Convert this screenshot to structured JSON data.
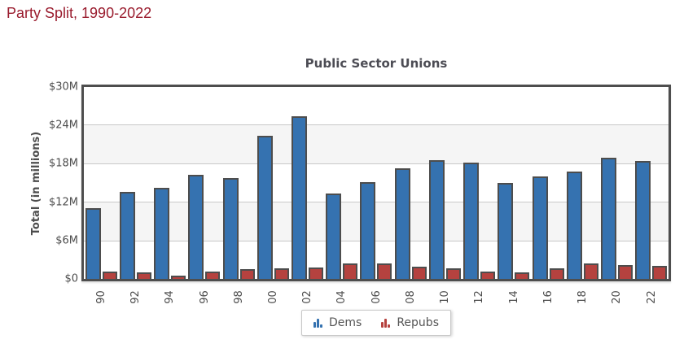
{
  "page_title": "Party Split, 1990-2022",
  "colors": {
    "page_title": "#9a1c2e",
    "chart_title": "#4c4c54",
    "axis_text": "#4d4d4d",
    "dems": "#3572b0",
    "repubs": "#b5423f",
    "bar_outline": "#4d4d4d",
    "frame": "#4e4e4e",
    "gridline": "#c9c9c9",
    "band": "#f5f5f5",
    "legend_text": "#555555"
  },
  "chart_data": {
    "type": "bar",
    "title": "Public Sector Unions",
    "xlabel": "",
    "ylabel": "Total (in millions)",
    "ylim": [
      0,
      30
    ],
    "yticks": [
      "$30M",
      "$24M",
      "$18M",
      "$12M",
      "$6M",
      "$0"
    ],
    "grid": true,
    "legend_position": "bottom-center",
    "categories": [
      "90",
      "92",
      "94",
      "96",
      "98",
      "00",
      "02",
      "04",
      "06",
      "08",
      "10",
      "12",
      "14",
      "16",
      "18",
      "20",
      "22"
    ],
    "series": [
      {
        "name": "Dems",
        "color": "#3572b0",
        "values": [
          11.0,
          13.6,
          14.3,
          16.3,
          15.8,
          22.4,
          25.4,
          13.3,
          15.1,
          17.3,
          18.6,
          18.2,
          15.0,
          16.0,
          16.8,
          18.9,
          18.4
        ]
      },
      {
        "name": "Repubs",
        "color": "#b5423f",
        "values": [
          1.2,
          1.0,
          0.5,
          1.2,
          1.5,
          1.6,
          1.8,
          2.4,
          2.4,
          1.9,
          1.6,
          1.2,
          1.0,
          1.6,
          2.4,
          2.2,
          2.0
        ]
      }
    ]
  }
}
